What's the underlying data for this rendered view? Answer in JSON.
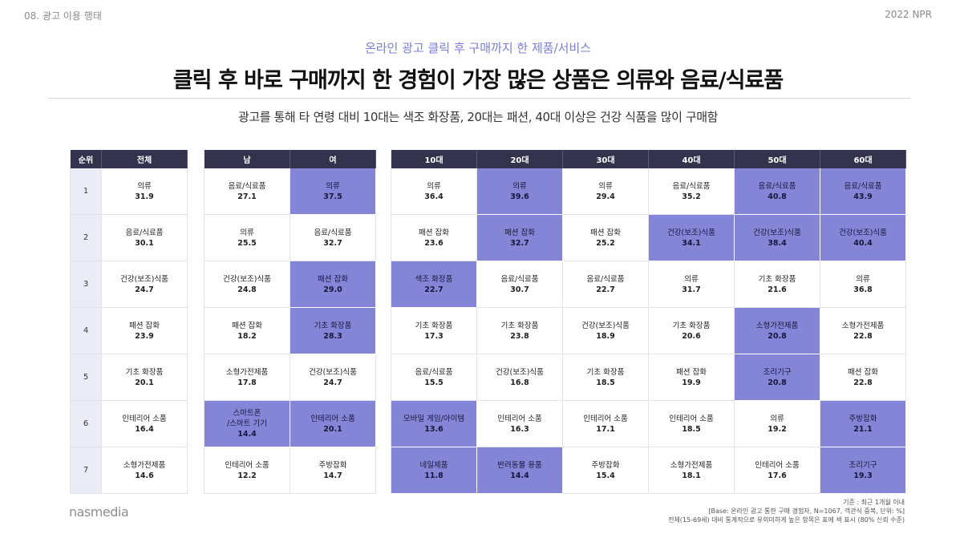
{
  "header": {
    "section": "08. 광고 이용 행태",
    "report": "2022 NPR"
  },
  "subtitle": "온라인 광고 클릭 후 구매까지 한 제품/서비스",
  "headline": "클릭 후 바로 구매까지 한 경험이 가장 많은 상품은 의류와 음료/식료품",
  "description": "광고를 통해 타 연령 대비 10대는 색조 화장품, 20대는 패션, 40대 이상은 건강 식품을 많이 구매함",
  "rank_header": "순위",
  "ranks": [
    "1",
    "2",
    "3",
    "4",
    "5",
    "6",
    "7"
  ],
  "total": {
    "header": "전체",
    "cells": [
      {
        "label": "의류",
        "value": "31.9",
        "hl": false
      },
      {
        "label": "음료/식료품",
        "value": "30.1",
        "hl": false
      },
      {
        "label": "건강(보조)식품",
        "value": "24.7",
        "hl": false
      },
      {
        "label": "패션 잡화",
        "value": "23.9",
        "hl": false
      },
      {
        "label": "기초 화장품",
        "value": "20.1",
        "hl": false
      },
      {
        "label": "인테리어 소품",
        "value": "16.4",
        "hl": false
      },
      {
        "label": "소형가전제품",
        "value": "14.6",
        "hl": false
      }
    ]
  },
  "gender": [
    {
      "header": "남",
      "cells": [
        {
          "label": "음료/식료품",
          "value": "27.1",
          "hl": false
        },
        {
          "label": "의류",
          "value": "25.5",
          "hl": false
        },
        {
          "label": "건강(보조)식품",
          "value": "24.8",
          "hl": false
        },
        {
          "label": "패션 잡화",
          "value": "18.2",
          "hl": false
        },
        {
          "label": "소형가전제품",
          "value": "17.8",
          "hl": false
        },
        {
          "label": "스마트폰\n/스마트 기기",
          "value": "14.4",
          "hl": true
        },
        {
          "label": "인테리어 소품",
          "value": "12.2",
          "hl": false
        }
      ]
    },
    {
      "header": "여",
      "cells": [
        {
          "label": "의류",
          "value": "37.5",
          "hl": true
        },
        {
          "label": "음료/식료품",
          "value": "32.7",
          "hl": false
        },
        {
          "label": "패션 잡화",
          "value": "29.0",
          "hl": true
        },
        {
          "label": "기초 화장품",
          "value": "28.3",
          "hl": true
        },
        {
          "label": "건강(보조)식품",
          "value": "24.7",
          "hl": false
        },
        {
          "label": "인테리어 소품",
          "value": "20.1",
          "hl": true
        },
        {
          "label": "주방잡화",
          "value": "14.7",
          "hl": false
        }
      ]
    }
  ],
  "age": [
    {
      "header": "10대",
      "cells": [
        {
          "label": "의류",
          "value": "36.4",
          "hl": false
        },
        {
          "label": "패션 잡화",
          "value": "23.6",
          "hl": false
        },
        {
          "label": "색조 화장품",
          "value": "22.7",
          "hl": true
        },
        {
          "label": "기초 화장품",
          "value": "17.3",
          "hl": false
        },
        {
          "label": "음료/식료품",
          "value": "15.5",
          "hl": false
        },
        {
          "label": "모바일 게임/아이템",
          "value": "13.6",
          "hl": true
        },
        {
          "label": "네일제품",
          "value": "11.8",
          "hl": true
        }
      ]
    },
    {
      "header": "20대",
      "cells": [
        {
          "label": "의류",
          "value": "39.6",
          "hl": true
        },
        {
          "label": "패션 잡화",
          "value": "32.7",
          "hl": true
        },
        {
          "label": "음료/식료품",
          "value": "30.7",
          "hl": false
        },
        {
          "label": "기초 화장품",
          "value": "23.8",
          "hl": false
        },
        {
          "label": "건강(보조)식품",
          "value": "16.8",
          "hl": false
        },
        {
          "label": "인테리어 소품",
          "value": "16.3",
          "hl": false
        },
        {
          "label": "반려동물 용품",
          "value": "14.4",
          "hl": true
        }
      ]
    },
    {
      "header": "30대",
      "cells": [
        {
          "label": "의류",
          "value": "29.4",
          "hl": false
        },
        {
          "label": "패션 잡화",
          "value": "25.2",
          "hl": false
        },
        {
          "label": "음료/식료품",
          "value": "22.7",
          "hl": false
        },
        {
          "label": "건강(보조)식품",
          "value": "18.9",
          "hl": false
        },
        {
          "label": "기초 화장품",
          "value": "18.5",
          "hl": false
        },
        {
          "label": "인테리어 소품",
          "value": "17.1",
          "hl": false
        },
        {
          "label": "주방잡화",
          "value": "15.4",
          "hl": false
        }
      ]
    },
    {
      "header": "40대",
      "cells": [
        {
          "label": "음료/식료품",
          "value": "35.2",
          "hl": false
        },
        {
          "label": "건강(보조)식품",
          "value": "34.1",
          "hl": true
        },
        {
          "label": "의류",
          "value": "31.7",
          "hl": false
        },
        {
          "label": "기초 화장품",
          "value": "20.6",
          "hl": false
        },
        {
          "label": "패션 잡화",
          "value": "19.9",
          "hl": false
        },
        {
          "label": "인테리어 소품",
          "value": "18.5",
          "hl": false
        },
        {
          "label": "소형가전제품",
          "value": "18.1",
          "hl": false
        }
      ]
    },
    {
      "header": "50대",
      "cells": [
        {
          "label": "음료/식료품",
          "value": "40.8",
          "hl": true
        },
        {
          "label": "건강(보조)식품",
          "value": "38.4",
          "hl": true
        },
        {
          "label": "기초 화장품",
          "value": "21.6",
          "hl": false
        },
        {
          "label": "소형가전제품",
          "value": "20.8",
          "hl": true
        },
        {
          "label": "조리기구",
          "value": "20.8",
          "hl": true
        },
        {
          "label": "의류",
          "value": "19.2",
          "hl": false
        },
        {
          "label": "인테리어 소품",
          "value": "17.6",
          "hl": false
        }
      ]
    },
    {
      "header": "60대",
      "cells": [
        {
          "label": "음료/식료품",
          "value": "43.9",
          "hl": true
        },
        {
          "label": "건강(보조)식품",
          "value": "40.4",
          "hl": true
        },
        {
          "label": "의류",
          "value": "36.8",
          "hl": false
        },
        {
          "label": "소형가전제품",
          "value": "22.8",
          "hl": false
        },
        {
          "label": "패션 잡화",
          "value": "22.8",
          "hl": false
        },
        {
          "label": "주방잡화",
          "value": "21.1",
          "hl": true
        },
        {
          "label": "조리기구",
          "value": "19.3",
          "hl": true
        }
      ]
    }
  ],
  "footnotes": [
    "기준 : 최근 1개월 이내",
    "[Base: 온라인 광고 통한 구매 경험자, N=1067, 객관식 중복, 단위: %]",
    "전체(15-69세) 대비 통계적으로 유의미하게 높은 항목은 표에 색 표시 (80% 신뢰 수준)"
  ],
  "logo": "nasmedia",
  "colors": {
    "header_bg": "#33334e",
    "highlight": "#8585d8",
    "rank_bg": "#ececf7",
    "accent": "#7b7fd4"
  }
}
